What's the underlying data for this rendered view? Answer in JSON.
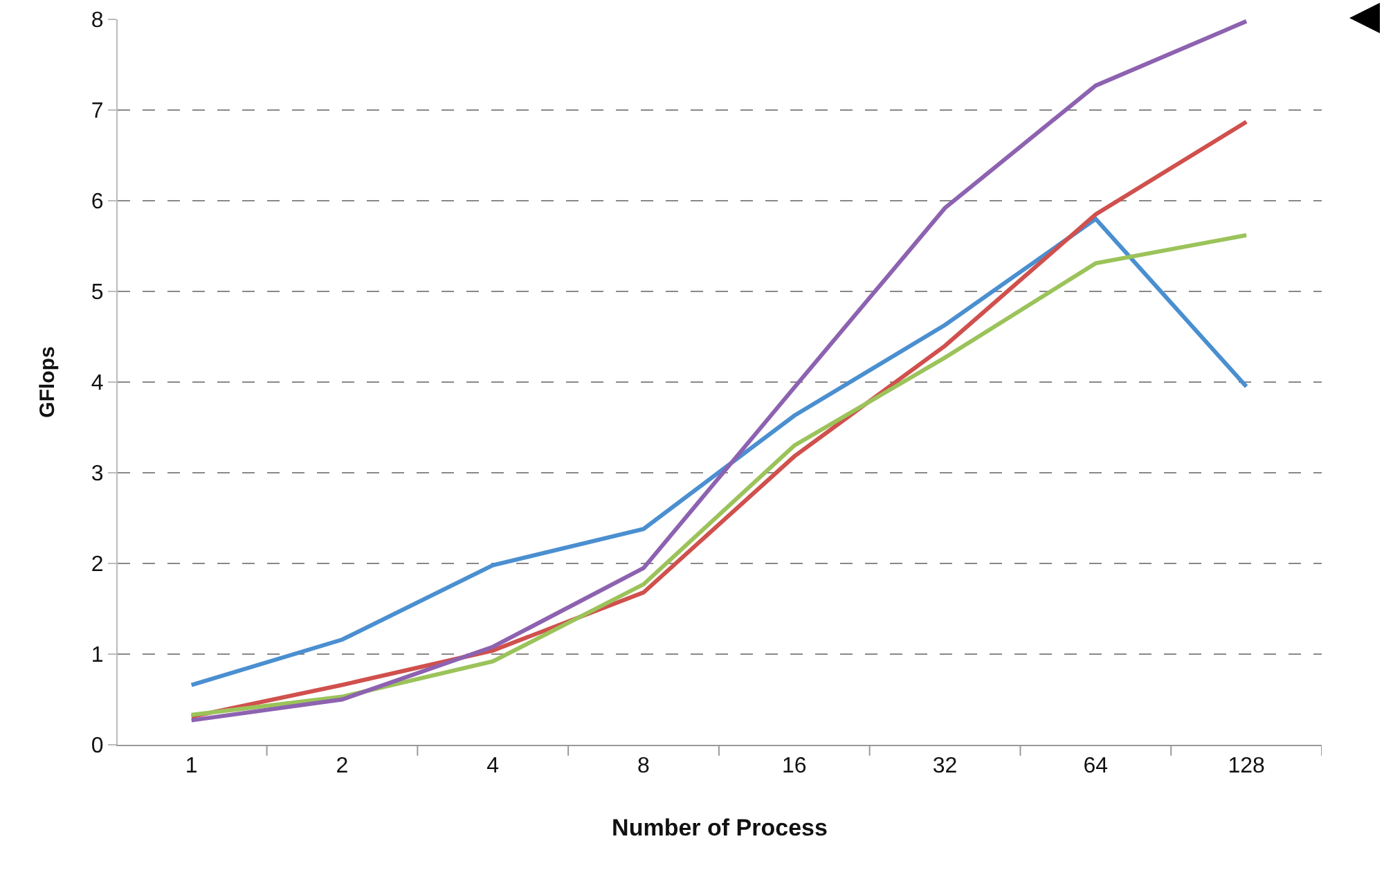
{
  "chart_data": {
    "type": "line",
    "xlabel": "Number of Process",
    "ylabel": "GFlops",
    "categories": [
      "1",
      "2",
      "4",
      "8",
      "16",
      "32",
      "64",
      "128"
    ],
    "series": [
      {
        "color": "#4a8fd0",
        "values": [
          0.66,
          1.16,
          1.98,
          2.38,
          3.63,
          4.63,
          5.8,
          3.95
        ]
      },
      {
        "color": "#d0504d",
        "values": [
          0.31,
          0.66,
          1.04,
          1.68,
          3.18,
          4.4,
          5.85,
          6.87
        ]
      },
      {
        "color": "#9bc35a",
        "values": [
          0.33,
          0.53,
          0.92,
          1.77,
          3.3,
          4.27,
          5.31,
          5.62
        ]
      },
      {
        "color": "#8d62b0",
        "values": [
          0.27,
          0.5,
          1.08,
          1.95,
          3.94,
          5.92,
          7.27,
          7.98
        ]
      }
    ],
    "ylim": [
      0,
      8
    ],
    "yticks": [
      0,
      1,
      2,
      3,
      4,
      5,
      6,
      7,
      8
    ],
    "grid": "y",
    "marker": "none",
    "line_style": "solid"
  }
}
